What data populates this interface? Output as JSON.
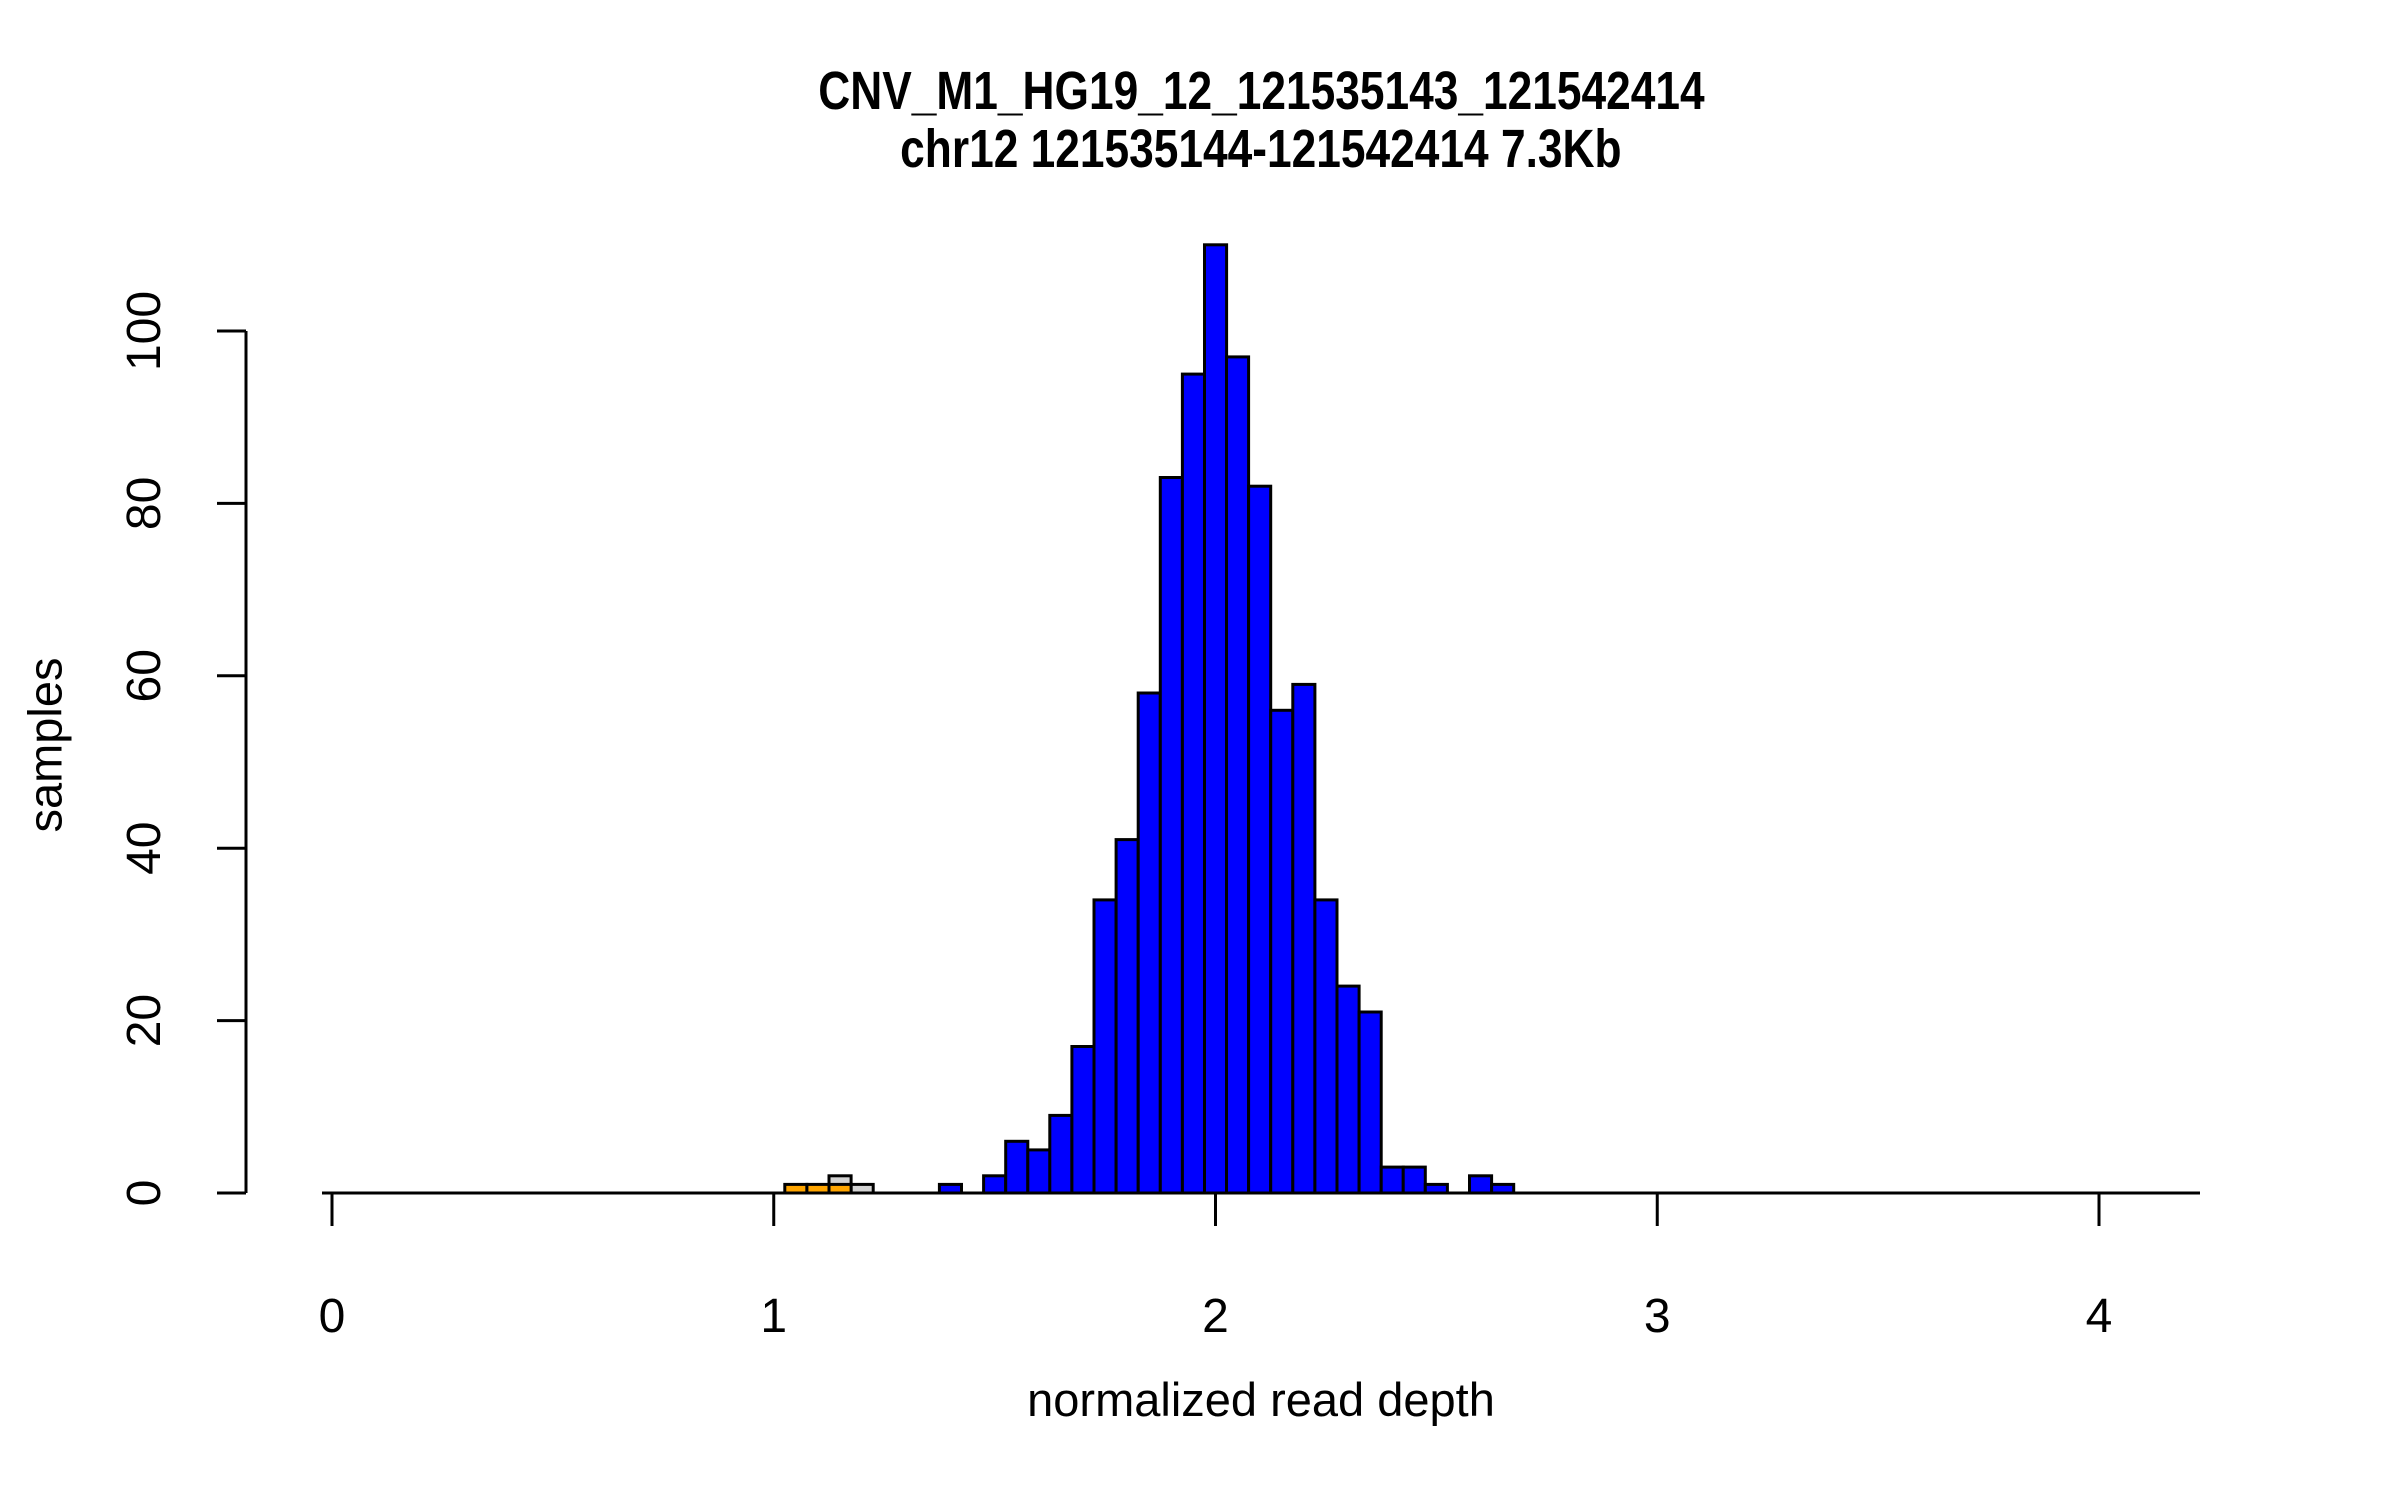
{
  "title": {
    "line1": "CNV_M1_HG19_12_121535143_121542414",
    "line2": "chr12 121535144-121542414 7.3Kb"
  },
  "axes": {
    "x": {
      "label": "normalized read depth",
      "ticks": [
        0,
        1,
        2,
        3,
        4
      ]
    },
    "y": {
      "label": "samples",
      "ticks": [
        0,
        20,
        40,
        60,
        80,
        100
      ]
    }
  },
  "colors": {
    "background": "#FFFFFF",
    "axis": "#000000",
    "bar_border": "#000000",
    "blue_series": "#0000FF",
    "orange_series": "#FFA500",
    "grey_series": "#D3D3D3"
  },
  "chart_data": {
    "type": "bar",
    "subtype": "histogram",
    "title": "CNV_M1_HG19_12_121535143_121542414 / chr12 121535144-121542414 7.3Kb",
    "xlabel": "normalized read depth",
    "ylabel": "samples",
    "xlim": [
      -0.02,
      4.23
    ],
    "ylim": [
      0,
      110
    ],
    "x_ticks": [
      0,
      1,
      2,
      3,
      4
    ],
    "y_ticks": [
      0,
      20,
      40,
      60,
      80,
      100
    ],
    "grid": false,
    "legend": false,
    "bin_width": 0.05,
    "note": "bins are centered on multiples of 0.05; counts read from bar heights",
    "series": [
      {
        "name": "grey-bars",
        "color": "#D3D3D3",
        "bins": [
          [
            1.15,
            2
          ],
          [
            1.2,
            1
          ]
        ]
      },
      {
        "name": "orange-bars",
        "color": "#FFA500",
        "bins": [
          [
            1.05,
            1
          ],
          [
            1.1,
            1
          ],
          [
            1.15,
            1
          ]
        ]
      },
      {
        "name": "blue-bars",
        "color": "#0000FF",
        "bins": [
          [
            1.4,
            1
          ],
          [
            1.45,
            0
          ],
          [
            1.5,
            2
          ],
          [
            1.55,
            6
          ],
          [
            1.6,
            5
          ],
          [
            1.65,
            9
          ],
          [
            1.7,
            17
          ],
          [
            1.75,
            34
          ],
          [
            1.8,
            41
          ],
          [
            1.85,
            58
          ],
          [
            1.9,
            83
          ],
          [
            1.95,
            95
          ],
          [
            2.0,
            110
          ],
          [
            2.05,
            97
          ],
          [
            2.1,
            82
          ],
          [
            2.15,
            56
          ],
          [
            2.2,
            59
          ],
          [
            2.25,
            34
          ],
          [
            2.3,
            24
          ],
          [
            2.35,
            21
          ],
          [
            2.4,
            3
          ],
          [
            2.45,
            3
          ],
          [
            2.5,
            1
          ],
          [
            2.55,
            0
          ],
          [
            2.6,
            2
          ],
          [
            2.65,
            1
          ]
        ]
      }
    ]
  }
}
